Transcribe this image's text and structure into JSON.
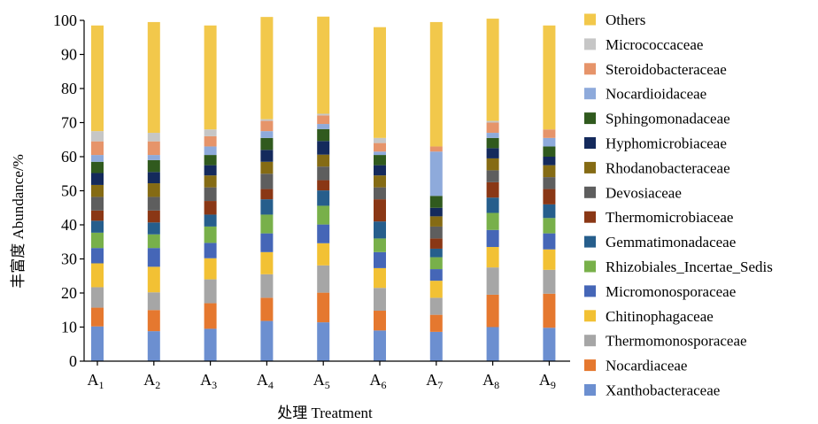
{
  "chart_data": {
    "type": "bar",
    "stacked": true,
    "xlabel": "处理 Treatment",
    "ylabel": "丰富度 Abundance/%",
    "ylim": [
      0,
      100
    ],
    "yticks": [
      0,
      10,
      20,
      30,
      40,
      50,
      60,
      70,
      80,
      90,
      100
    ],
    "grid": false,
    "legend_position": "right",
    "categories": [
      {
        "base": "A",
        "sub": "1"
      },
      {
        "base": "A",
        "sub": "2"
      },
      {
        "base": "A",
        "sub": "3"
      },
      {
        "base": "A",
        "sub": "4"
      },
      {
        "base": "A",
        "sub": "5"
      },
      {
        "base": "A",
        "sub": "6"
      },
      {
        "base": "A",
        "sub": "7"
      },
      {
        "base": "A",
        "sub": "8"
      },
      {
        "base": "A",
        "sub": "9"
      }
    ],
    "series": [
      {
        "name": "Xanthobacteraceae",
        "color": "#6c8fd0",
        "values": [
          10.2,
          8.8,
          9.5,
          11.8,
          11.4,
          9.0,
          8.6,
          10.0,
          9.8
        ]
      },
      {
        "name": "Nocardiaceae",
        "color": "#e5782f",
        "values": [
          5.5,
          6.2,
          7.5,
          6.8,
          8.7,
          5.8,
          5.0,
          9.5,
          10.0
        ]
      },
      {
        "name": "Thermomonosporaceae",
        "color": "#a6a6a6",
        "values": [
          6.0,
          5.2,
          7.0,
          6.9,
          8.0,
          6.7,
          5.0,
          8.0,
          7.0
        ]
      },
      {
        "name": "Chitinophagaceae",
        "color": "#f2c134",
        "values": [
          7.0,
          7.5,
          6.2,
          6.5,
          6.5,
          5.8,
          5.0,
          6.0,
          6.0
        ]
      },
      {
        "name": "Micromonosporaceae",
        "color": "#4566b7",
        "values": [
          4.5,
          5.5,
          4.5,
          5.5,
          5.5,
          4.7,
          3.4,
          5.0,
          4.7
        ]
      },
      {
        "name": "Rhizobiales_Incertae_Sedis",
        "color": "#78b04a",
        "values": [
          4.5,
          4.0,
          4.8,
          5.5,
          5.5,
          4.0,
          3.5,
          5.0,
          4.5
        ]
      },
      {
        "name": "Gemmatimonadaceae",
        "color": "#265e8c",
        "values": [
          3.5,
          3.5,
          3.5,
          4.5,
          4.5,
          5.0,
          2.5,
          4.5,
          4.0
        ]
      },
      {
        "name": "Thermomicrobiaceae",
        "color": "#8a3715",
        "values": [
          3.0,
          3.5,
          4.0,
          3.0,
          3.0,
          6.5,
          3.0,
          4.5,
          4.5
        ]
      },
      {
        "name": "Devosiaceae",
        "color": "#5e5e5e",
        "values": [
          4.0,
          4.0,
          4.0,
          4.5,
          4.0,
          3.5,
          3.5,
          3.5,
          3.5
        ]
      },
      {
        "name": "Rhodanobacteraceae",
        "color": "#856b14",
        "values": [
          3.5,
          4.0,
          3.5,
          3.5,
          3.5,
          3.5,
          3.0,
          3.5,
          3.5
        ]
      },
      {
        "name": "Hyphomicrobiaceae",
        "color": "#142a5c",
        "values": [
          3.5,
          3.3,
          3.0,
          3.5,
          4.0,
          3.0,
          2.5,
          3.0,
          2.5
        ]
      },
      {
        "name": "Sphingomonadaceae",
        "color": "#305a1e",
        "values": [
          3.3,
          3.5,
          3.0,
          3.5,
          3.5,
          3.0,
          3.5,
          3.0,
          3.0
        ]
      },
      {
        "name": "Nocardioidaceae",
        "color": "#8eaadb",
        "values": [
          2.0,
          1.5,
          2.5,
          2.0,
          1.5,
          1.0,
          13.0,
          1.5,
          2.5
        ]
      },
      {
        "name": "Steroidobacteraceae",
        "color": "#e6946a",
        "values": [
          4.0,
          4.0,
          3.0,
          3.0,
          2.5,
          2.5,
          1.5,
          3.0,
          2.5
        ]
      },
      {
        "name": "Micrococcaceae",
        "color": "#c6c6c6",
        "values": [
          3.0,
          2.5,
          2.0,
          0.5,
          0.5,
          1.5,
          0.0,
          0.5,
          0.0
        ]
      },
      {
        "name": "Others",
        "color": "#f2c84b",
        "values": [
          31.0,
          32.5,
          30.5,
          30.0,
          28.5,
          32.5,
          36.5,
          30.0,
          30.5
        ]
      }
    ]
  }
}
